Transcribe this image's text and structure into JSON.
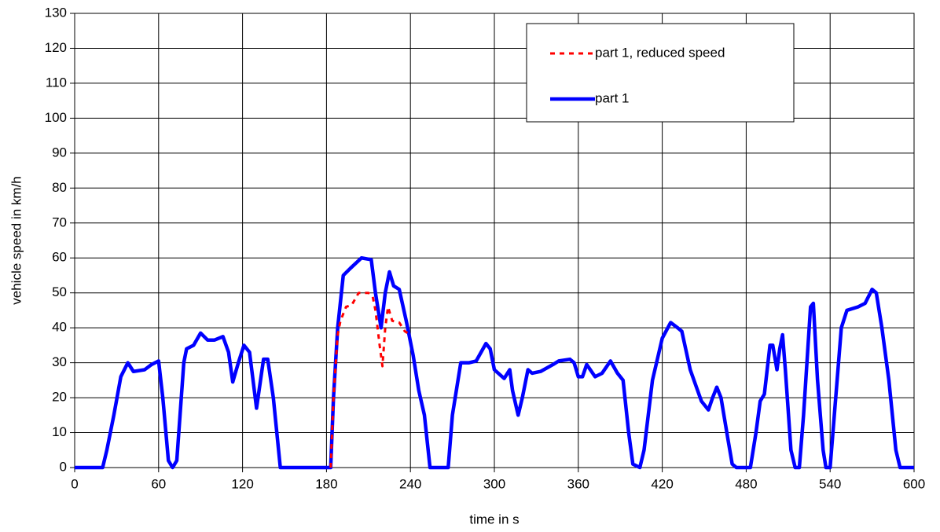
{
  "chart_data": {
    "type": "line",
    "xlabel": "time in s",
    "ylabel": "vehicle speed in km/h",
    "xlim": [
      0,
      600
    ],
    "xticks": [
      0,
      60,
      120,
      180,
      240,
      300,
      360,
      420,
      480,
      540,
      600
    ],
    "ylim": [
      0,
      130
    ],
    "yticks": [
      0,
      10,
      20,
      30,
      40,
      50,
      60,
      70,
      80,
      90,
      100,
      110,
      120,
      130
    ],
    "grid": true,
    "legend": "upper right",
    "series": [
      {
        "name": "part 1, reduced speed",
        "color": "#ff0000",
        "dashed": true,
        "x": [
          183,
          185,
          188,
          190,
          194,
          198,
          203,
          210,
          213,
          215,
          218,
          220,
          222,
          224,
          227,
          232,
          236,
          240
        ],
        "values": [
          0,
          20,
          38,
          42,
          46,
          46.5,
          50,
          50,
          49,
          45,
          35,
          29,
          40,
          46,
          42,
          41.5,
          39,
          38
        ]
      },
      {
        "name": "part 1",
        "color": "#0000ff",
        "dashed": false,
        "x": [
          0,
          20,
          23,
          28,
          33,
          38,
          42,
          50,
          55,
          60,
          63,
          67,
          70,
          73,
          78,
          80,
          85,
          90,
          95,
          100,
          106,
          110,
          113,
          117,
          121,
          125,
          130,
          135,
          138,
          142,
          147,
          183,
          185,
          188,
          192,
          197,
          205,
          212,
          215,
          219,
          222,
          225,
          228,
          232,
          237,
          242,
          246,
          250,
          254,
          267,
          270,
          276,
          282,
          287,
          294,
          297,
          300,
          307,
          311,
          313,
          317,
          320,
          324,
          327,
          333,
          342,
          346,
          354,
          357,
          360,
          363,
          366,
          372,
          377,
          383,
          388,
          392,
          396,
          399,
          404,
          407,
          413,
          420,
          426,
          431,
          434,
          440,
          448,
          453,
          456,
          459,
          462,
          467,
          470,
          473,
          483,
          487,
          490,
          493,
          497,
          499,
          502,
          504,
          506,
          508,
          512,
          515,
          518,
          521,
          526,
          528,
          531,
          535,
          537,
          540,
          543,
          548,
          552,
          560,
          565,
          570,
          573,
          577,
          582,
          587,
          590,
          600
        ],
        "values": [
          0,
          0,
          5,
          15,
          26,
          30,
          27.5,
          28,
          29.5,
          30.5,
          20,
          2,
          0,
          2,
          30,
          34,
          35,
          38.5,
          36.5,
          36.5,
          37.5,
          33,
          24.5,
          30,
          35,
          33,
          17,
          31,
          31,
          20,
          0,
          0,
          20,
          40,
          55,
          57,
          60,
          59.5,
          50,
          40,
          50,
          56,
          52,
          51,
          42,
          32,
          22,
          15,
          0,
          0,
          15,
          30,
          30,
          30.5,
          35.5,
          34,
          28,
          25.5,
          28,
          22,
          15,
          20,
          28,
          27,
          27.5,
          29.5,
          30.5,
          31,
          30,
          26,
          26,
          29.5,
          26,
          27,
          30.5,
          27,
          25,
          10,
          1,
          0,
          5,
          25,
          37,
          41.5,
          40,
          39,
          28,
          19,
          16.5,
          20,
          23,
          20,
          8,
          1,
          0,
          0,
          10,
          19,
          21,
          35,
          35,
          28,
          34,
          38,
          28,
          5,
          0,
          0,
          15,
          46,
          47,
          25,
          5,
          0,
          0,
          15,
          40,
          45,
          46,
          47,
          51,
          50,
          40,
          25,
          5,
          0,
          0
        ]
      }
    ]
  }
}
